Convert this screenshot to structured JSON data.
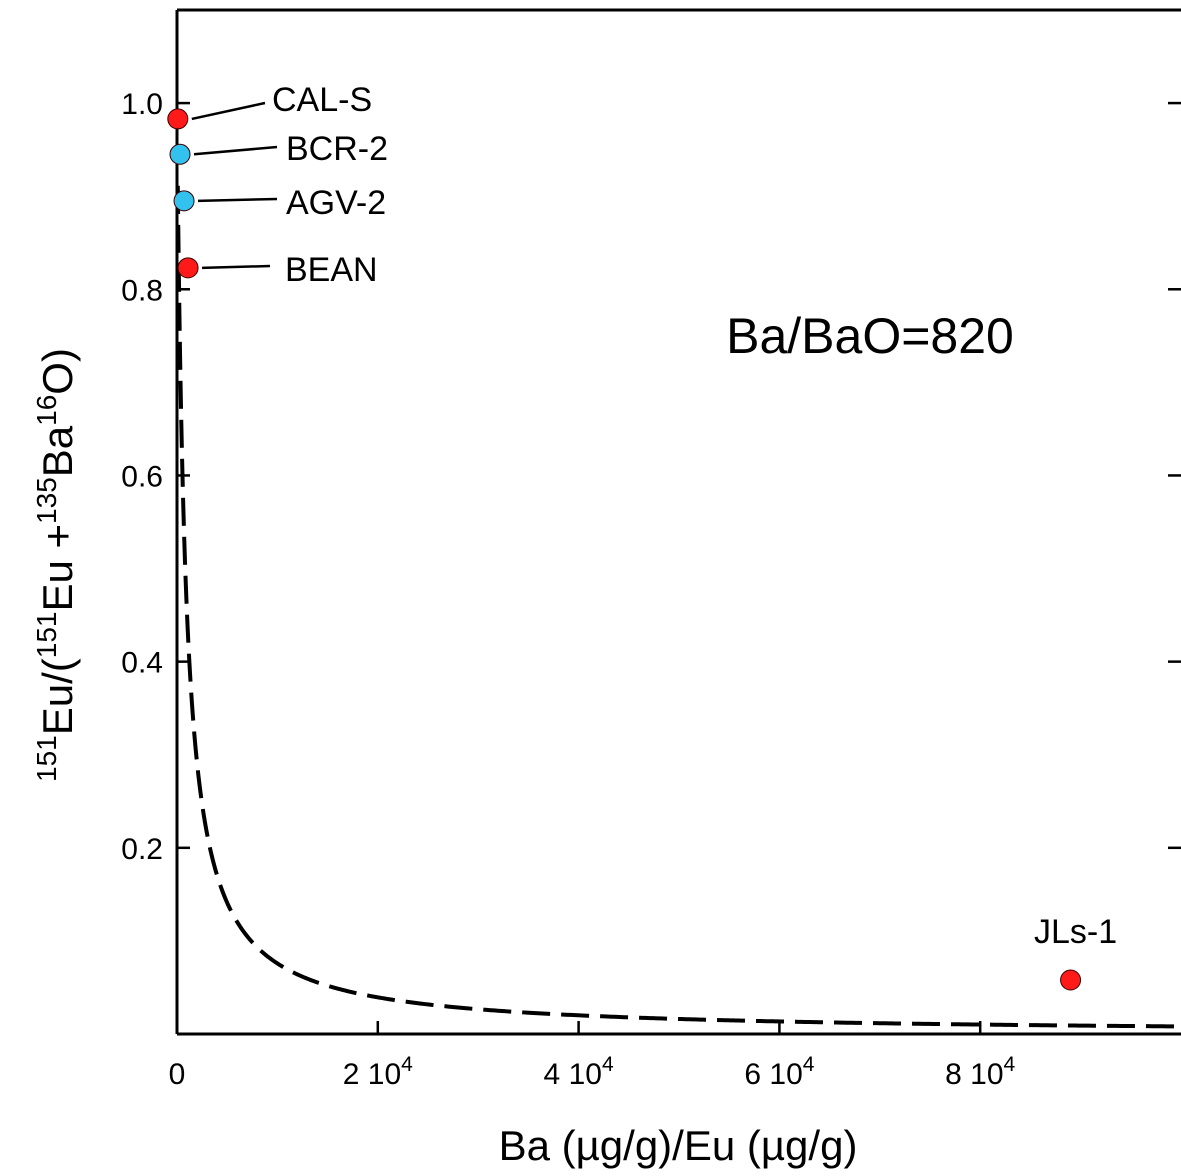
{
  "chart_data": {
    "type": "scatter",
    "title": "",
    "xlabel": "Ba (µg/g)/Eu (µg/g)",
    "ylabel": {
      "parts": [
        {
          "text": "151",
          "sup": true
        },
        {
          "text": "Eu/(",
          "sup": false
        },
        {
          "text": "151",
          "sup": true
        },
        {
          "text": "Eu +",
          "sup": false
        },
        {
          "text": "135",
          "sup": true
        },
        {
          "text": "Ba",
          "sup": false
        },
        {
          "text": "16",
          "sup": true
        },
        {
          "text": "O)",
          "sup": false
        }
      ]
    },
    "xlim": [
      0,
      100000
    ],
    "ylim": [
      0,
      1.1
    ],
    "x_ticks": [
      {
        "value": 0,
        "base": "0",
        "exp": ""
      },
      {
        "value": 20000,
        "base": "2 10",
        "exp": "4"
      },
      {
        "value": 40000,
        "base": "4 10",
        "exp": "4"
      },
      {
        "value": 60000,
        "base": "6 10",
        "exp": "4"
      },
      {
        "value": 80000,
        "base": "8 10",
        "exp": "4"
      }
    ],
    "y_ticks": [
      {
        "value": 0.2,
        "label": "0.2"
      },
      {
        "value": 0.4,
        "label": "0.4"
      },
      {
        "value": 0.6,
        "label": "0.6"
      },
      {
        "value": 0.8,
        "label": "0.8"
      },
      {
        "value": 1.0,
        "label": "1.0"
      }
    ],
    "annotation": "Ba/BaO=820",
    "curve": {
      "ba_bao": 820,
      "style": "dashed",
      "color": "#000000"
    },
    "points": [
      {
        "label": "CAL-S",
        "x": 80,
        "y": 0.983,
        "color": "#ff1a1a"
      },
      {
        "label": "BCR-2",
        "x": 300,
        "y": 0.945,
        "color": "#33c1ee"
      },
      {
        "label": "AGV-2",
        "x": 700,
        "y": 0.895,
        "color": "#33c1ee"
      },
      {
        "label": "BEAN",
        "x": 1100,
        "y": 0.823,
        "color": "#ff1a1a"
      },
      {
        "label": "JLs-1",
        "x": 89000,
        "y": 0.058,
        "color": "#ff1a1a"
      }
    ],
    "grid": false,
    "legend": "none"
  }
}
